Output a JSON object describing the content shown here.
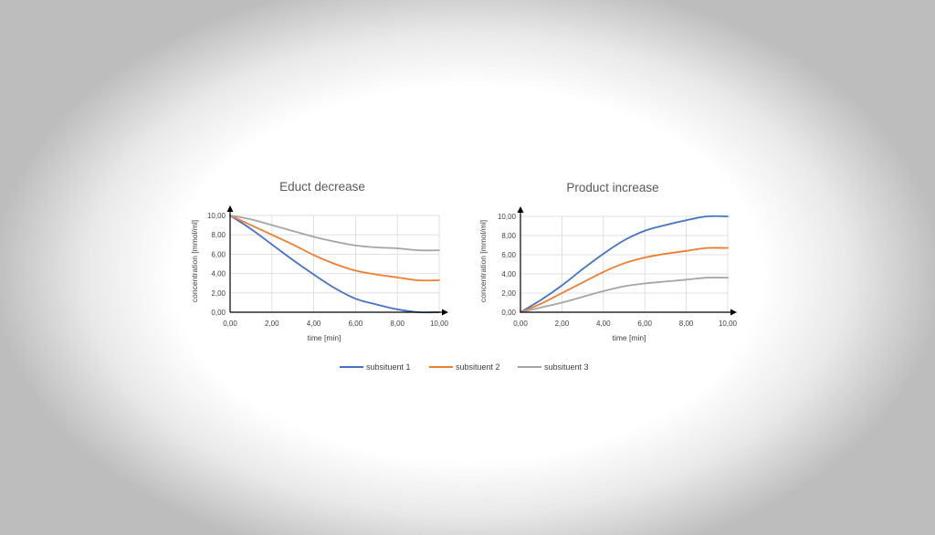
{
  "colors": {
    "series1": "#4472c4",
    "series2": "#ed7d31",
    "series3": "#a5a5a5",
    "grid": "#d9d9d9"
  },
  "legend": [
    {
      "name": "subsituent 1",
      "color": "#4472c4"
    },
    {
      "name": "subsituent 2",
      "color": "#ed7d31"
    },
    {
      "name": "subsituent 3",
      "color": "#a5a5a5"
    }
  ],
  "chart_data": [
    {
      "type": "line",
      "title": "Educt decrease",
      "xlabel": "time [min]",
      "ylabel": "concentration  [mmol/ml]",
      "xlim": [
        0,
        10
      ],
      "ylim": [
        0,
        10
      ],
      "xticks": [
        "0,00",
        "2,00",
        "4,00",
        "6,00",
        "8,00",
        "10,00"
      ],
      "yticks": [
        "0,00",
        "2,00",
        "4,00",
        "6,00",
        "8,00",
        "10,00"
      ],
      "grid": true,
      "series": [
        {
          "name": "subsituent 1",
          "x": [
            0,
            1,
            2,
            3,
            4,
            5,
            6,
            7,
            8,
            9,
            10
          ],
          "y": [
            10,
            8.6,
            7.0,
            5.4,
            3.9,
            2.5,
            1.4,
            0.8,
            0.3,
            0.0,
            0.0
          ]
        },
        {
          "name": "subsituent 2",
          "x": [
            0,
            1,
            2,
            3,
            4,
            5,
            6,
            7,
            8,
            9,
            10
          ],
          "y": [
            10,
            9.0,
            8.0,
            7.0,
            5.9,
            5.0,
            4.3,
            3.9,
            3.6,
            3.3,
            3.3
          ]
        },
        {
          "name": "subsituent 3",
          "x": [
            0,
            1,
            2,
            3,
            4,
            5,
            6,
            7,
            8,
            9,
            10
          ],
          "y": [
            10,
            9.6,
            9.0,
            8.4,
            7.8,
            7.3,
            6.9,
            6.7,
            6.6,
            6.4,
            6.4
          ]
        }
      ]
    },
    {
      "type": "line",
      "title": "Product increase",
      "xlabel": "time [min]",
      "ylabel": "concentration  [mmol/ml]",
      "xlim": [
        0,
        10
      ],
      "ylim": [
        0,
        10
      ],
      "xticks": [
        "0,00",
        "2,00",
        "4,00",
        "6,00",
        "8,00",
        "10,00"
      ],
      "yticks": [
        "0,00",
        "2,00",
        "4,00",
        "6,00",
        "8,00",
        "10,00"
      ],
      "grid": true,
      "series": [
        {
          "name": "subsituent 1",
          "x": [
            0,
            1,
            2,
            3,
            4,
            5,
            6,
            7,
            8,
            9,
            10
          ],
          "y": [
            0,
            1.3,
            2.8,
            4.5,
            6.1,
            7.5,
            8.5,
            9.1,
            9.6,
            10.0,
            10.0
          ]
        },
        {
          "name": "subsituent 2",
          "x": [
            0,
            1,
            2,
            3,
            4,
            5,
            6,
            7,
            8,
            9,
            10
          ],
          "y": [
            0,
            0.9,
            2.0,
            3.1,
            4.2,
            5.1,
            5.7,
            6.1,
            6.4,
            6.7,
            6.7
          ]
        },
        {
          "name": "subsituent 3",
          "x": [
            0,
            1,
            2,
            3,
            4,
            5,
            6,
            7,
            8,
            9,
            10
          ],
          "y": [
            0,
            0.5,
            1.0,
            1.6,
            2.2,
            2.7,
            3.0,
            3.2,
            3.4,
            3.6,
            3.6
          ]
        }
      ]
    }
  ]
}
